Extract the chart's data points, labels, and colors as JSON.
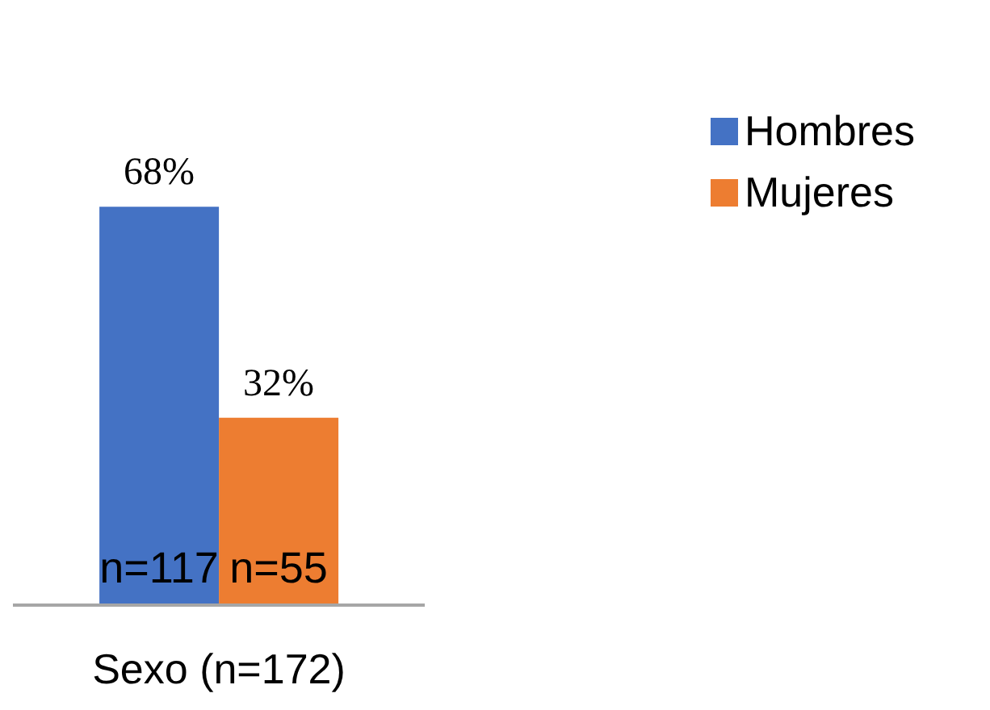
{
  "chart_data": {
    "type": "bar",
    "categories": [
      "Sexo (n=172)"
    ],
    "series": [
      {
        "name": "Hombres",
        "color": "#4472c4",
        "values": [
          68
        ],
        "value_labels": [
          "68%"
        ]
      },
      {
        "name": "Mujeres",
        "color": "#ed7d31",
        "values": [
          32
        ],
        "value_labels": [
          "32%"
        ]
      }
    ],
    "annotations": [
      "n=117",
      "n=55"
    ],
    "legend": "top right",
    "grid": false
  }
}
